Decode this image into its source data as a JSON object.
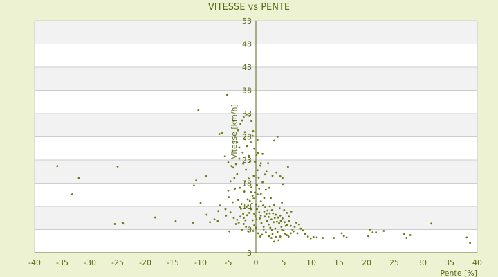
{
  "chart_data": {
    "type": "scatter",
    "title": "VITESSE vs PENTE",
    "xlabel": "Pente [%]",
    "ylabel": "Vitesse [km/h]",
    "xlim": [
      -40,
      40
    ],
    "ylim": [
      3,
      53
    ],
    "x_ticks": [
      -40,
      -35,
      -30,
      -25,
      -20,
      -15,
      -10,
      -5,
      0,
      5,
      10,
      15,
      20,
      25,
      30,
      35,
      40
    ],
    "y_ticks": [
      3,
      8,
      13,
      18,
      23,
      28,
      33,
      38,
      43,
      48,
      53
    ],
    "grid": true,
    "legend": "none",
    "colors": {
      "background": "#edf2d2",
      "band_light": "#ffffff",
      "band_dark": "#f2f2f2",
      "grid": "#cccccc",
      "axis": "#556b14",
      "marker": "#6b7a14",
      "text": "#556b14"
    },
    "points": [
      [
        -35.9,
        21.7
      ],
      [
        -33.2,
        15.6
      ],
      [
        -32.0,
        19.1
      ],
      [
        -25.0,
        21.6
      ],
      [
        -25.5,
        9.2
      ],
      [
        -24.1,
        9.5
      ],
      [
        -23.9,
        9.3
      ],
      [
        -18.2,
        10.6
      ],
      [
        -14.5,
        9.8
      ],
      [
        -11.4,
        9.5
      ],
      [
        -11.2,
        17.5
      ],
      [
        -10.8,
        18.6
      ],
      [
        -10.4,
        33.7
      ],
      [
        -10.0,
        13.7
      ],
      [
        -9.0,
        19.5
      ],
      [
        -8.9,
        11.2
      ],
      [
        -8.3,
        9.6
      ],
      [
        -7.5,
        10.2
      ],
      [
        -6.9,
        9.8
      ],
      [
        -6.5,
        13.2
      ],
      [
        -6.8,
        12.0
      ],
      [
        -6.6,
        28.6
      ],
      [
        -6.1,
        28.8
      ],
      [
        -5.6,
        23.8
      ],
      [
        -5.2,
        37.0
      ],
      [
        -5.0,
        22.5
      ],
      [
        -4.4,
        21.7
      ],
      [
        -4.2,
        27.0
      ],
      [
        -4.0,
        31.4
      ],
      [
        -3.4,
        26.8
      ],
      [
        -3.2,
        29.4
      ],
      [
        -2.8,
        30.8
      ],
      [
        -2.5,
        31.5
      ],
      [
        -2.2,
        32.2
      ],
      [
        -2.0,
        29.0
      ],
      [
        -1.7,
        32.8
      ],
      [
        -1.2,
        32.5
      ],
      [
        -0.8,
        31.4
      ],
      [
        -0.5,
        29.2
      ],
      [
        -0.3,
        25.5
      ],
      [
        0.1,
        24.1
      ],
      [
        0.4,
        24.5
      ],
      [
        0.8,
        21.8
      ],
      [
        1.2,
        24.3
      ],
      [
        0.3,
        27.4
      ],
      [
        -0.6,
        28.2
      ],
      [
        -1.1,
        22.7
      ],
      [
        -2.3,
        22.2
      ],
      [
        -3.4,
        20.0
      ],
      [
        -3.9,
        19.1
      ],
      [
        -4.1,
        21.4
      ],
      [
        -1.9,
        18.4
      ],
      [
        -0.8,
        17.1
      ],
      [
        -0.2,
        16.0
      ],
      [
        0.3,
        15.6
      ],
      [
        0.9,
        15.7
      ],
      [
        1.8,
        16.6
      ],
      [
        2.4,
        17.0
      ],
      [
        3.0,
        19.6
      ],
      [
        3.7,
        20.3
      ],
      [
        3.9,
        28.0
      ],
      [
        3.3,
        27.2
      ],
      [
        4.4,
        19.5
      ],
      [
        4.8,
        19.1
      ],
      [
        5.8,
        21.5
      ],
      [
        4.9,
        17.8
      ],
      [
        1.5,
        14.8
      ],
      [
        2.7,
        14.8
      ],
      [
        -1.5,
        14.5
      ],
      [
        -2.6,
        13.5
      ],
      [
        -2.9,
        12.8
      ],
      [
        -3.2,
        14.4
      ],
      [
        -4.2,
        13.9
      ],
      [
        -4.9,
        15.0
      ],
      [
        -5.5,
        12.4
      ],
      [
        -5.4,
        11.0
      ],
      [
        -4.6,
        11.7
      ],
      [
        -4.0,
        10.5
      ],
      [
        -3.6,
        9.2
      ],
      [
        -3.1,
        9.5
      ],
      [
        -2.7,
        12.5
      ],
      [
        -2.3,
        11.4
      ],
      [
        -2.2,
        10.5
      ],
      [
        -1.9,
        10.0
      ],
      [
        -1.7,
        12.9
      ],
      [
        -1.4,
        13.2
      ],
      [
        -1.1,
        14.2
      ],
      [
        -0.7,
        13.6
      ],
      [
        -0.4,
        14.7
      ],
      [
        0.0,
        13.4
      ],
      [
        0.5,
        13.0
      ],
      [
        0.9,
        14.1
      ],
      [
        1.3,
        13.2
      ],
      [
        1.7,
        12.8
      ],
      [
        2.1,
        12.1
      ],
      [
        2.5,
        13.0
      ],
      [
        2.9,
        12.2
      ],
      [
        3.3,
        13.3
      ],
      [
        3.6,
        11.2
      ],
      [
        4.0,
        10.6
      ],
      [
        4.4,
        11.0
      ],
      [
        4.8,
        10.4
      ],
      [
        5.2,
        9.6
      ],
      [
        5.6,
        9.0
      ],
      [
        6.0,
        9.8
      ],
      [
        6.3,
        8.8
      ],
      [
        6.6,
        8.0
      ],
      [
        7.0,
        8.6
      ],
      [
        7.5,
        7.2
      ],
      [
        7.8,
        9.1
      ],
      [
        8.1,
        8.2
      ],
      [
        8.5,
        7.8
      ],
      [
        8.9,
        7.0
      ],
      [
        9.4,
        6.5
      ],
      [
        9.9,
        6.1
      ],
      [
        10.4,
        6.4
      ],
      [
        11.0,
        6.3
      ],
      [
        12.1,
        6.2
      ],
      [
        14.1,
        6.2
      ],
      [
        15.5,
        7.2
      ],
      [
        15.9,
        6.6
      ],
      [
        16.4,
        6.3
      ],
      [
        20.3,
        6.6
      ],
      [
        20.6,
        8.0
      ],
      [
        21.1,
        7.4
      ],
      [
        21.7,
        7.4
      ],
      [
        23.1,
        7.7
      ],
      [
        26.8,
        7.0
      ],
      [
        27.2,
        6.2
      ],
      [
        27.9,
        6.8
      ],
      [
        31.7,
        9.3
      ],
      [
        38.1,
        6.3
      ],
      [
        38.7,
        5.1
      ],
      [
        0.6,
        11.7
      ],
      [
        0.2,
        12.4
      ],
      [
        -0.1,
        10.9
      ],
      [
        0.7,
        10.4
      ],
      [
        1.0,
        9.4
      ],
      [
        1.4,
        8.6
      ],
      [
        1.6,
        10.8
      ],
      [
        2.0,
        9.9
      ],
      [
        2.3,
        9.1
      ],
      [
        2.6,
        8.4
      ],
      [
        2.9,
        7.9
      ],
      [
        3.2,
        9.6
      ],
      [
        3.5,
        8.2
      ],
      [
        3.9,
        7.5
      ],
      [
        4.2,
        9.4
      ],
      [
        4.6,
        8.6
      ],
      [
        5.0,
        7.8
      ],
      [
        5.3,
        7.1
      ],
      [
        5.6,
        6.8
      ],
      [
        5.9,
        6.5
      ],
      [
        6.3,
        7.2
      ],
      [
        -0.5,
        7.7
      ],
      [
        -1.0,
        8.2
      ],
      [
        -1.4,
        7.6
      ],
      [
        -1.8,
        8.6
      ],
      [
        -2.2,
        9.2
      ],
      [
        -0.3,
        8.9
      ],
      [
        0.4,
        7.2
      ],
      [
        1.1,
        6.9
      ],
      [
        1.8,
        7.4
      ],
      [
        2.4,
        6.6
      ],
      [
        3.0,
        7.0
      ],
      [
        3.6,
        6.4
      ],
      [
        4.1,
        5.7
      ],
      [
        4.4,
        6.5
      ],
      [
        0.1,
        10.2
      ],
      [
        0.6,
        16.8
      ],
      [
        1.2,
        18.2
      ],
      [
        1.6,
        19.9
      ],
      [
        0.9,
        22.3
      ],
      [
        0.3,
        20.8
      ],
      [
        -0.4,
        19.6
      ],
      [
        -1.3,
        19.0
      ],
      [
        -1.8,
        20.9
      ],
      [
        -2.4,
        24.6
      ],
      [
        -3.0,
        23.3
      ],
      [
        -3.6,
        22.1
      ],
      [
        -2.9,
        17.0
      ],
      [
        -2.1,
        16.2
      ],
      [
        -0.9,
        16.1
      ],
      [
        -0.6,
        15.3
      ],
      [
        0.2,
        17.6
      ],
      [
        0.5,
        19.2
      ],
      [
        1.9,
        20.5
      ],
      [
        2.2,
        22.3
      ],
      [
        -1.6,
        26.0
      ],
      [
        -0.9,
        26.8
      ],
      [
        -2.0,
        27.5
      ],
      [
        -3.0,
        25.7
      ],
      [
        -1.3,
        23.9
      ],
      [
        -0.2,
        22.6
      ],
      [
        -3.8,
        16.8
      ],
      [
        -5.0,
        16.4
      ],
      [
        -4.6,
        18.4
      ],
      [
        -1.2,
        11.6
      ],
      [
        -0.9,
        12.4
      ],
      [
        1.9,
        11.4
      ],
      [
        2.3,
        10.7
      ],
      [
        2.8,
        10.2
      ],
      [
        3.1,
        11.5
      ],
      [
        4.3,
        12.6
      ],
      [
        4.7,
        13.8
      ],
      [
        5.1,
        12.2
      ],
      [
        5.6,
        11.6
      ],
      [
        6.0,
        10.8
      ],
      [
        6.4,
        11.9
      ],
      [
        7.3,
        9.5
      ],
      [
        -2.5,
        8.0
      ],
      [
        -4.8,
        7.6
      ],
      [
        0.8,
        6.5
      ],
      [
        1.4,
        8.0
      ],
      [
        2.8,
        6.2
      ],
      [
        3.3,
        5.4
      ],
      [
        4.7,
        8.0
      ],
      [
        5.4,
        8.8
      ],
      [
        6.8,
        7.6
      ],
      [
        0.0,
        8.4
      ],
      [
        -0.6,
        10.0
      ],
      [
        -1.6,
        11.1
      ],
      [
        -2.8,
        10.8
      ],
      [
        -3.4,
        10.1
      ],
      [
        -0.3,
        11.4
      ],
      [
        0.9,
        11.0
      ],
      [
        1.5,
        11.9
      ],
      [
        2.5,
        11.5
      ],
      [
        3.4,
        10.5
      ],
      [
        3.8,
        9.7
      ],
      [
        4.5,
        9.9
      ]
    ]
  }
}
